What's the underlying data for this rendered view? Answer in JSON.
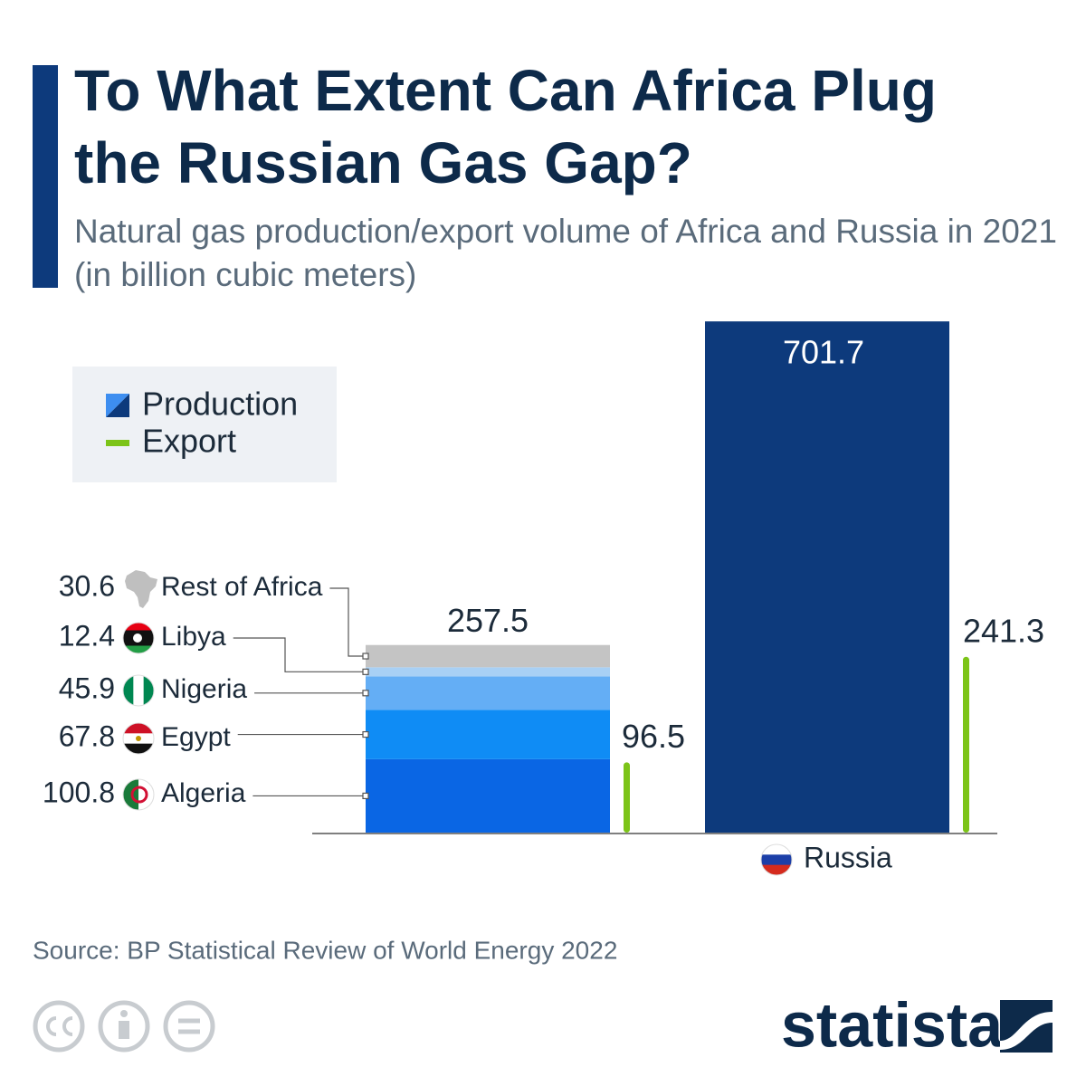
{
  "chart_data": {
    "type": "bar",
    "title": "To What Extent Can Africa Plug the Russian Gas Gap?",
    "subtitle": "Natural gas production/export volume of Africa and Russia in 2021 (in billion cubic meters)",
    "categories": [
      null,
      "Russia"
    ],
    "series": [
      {
        "name": "Production",
        "color": "#0d3a7c",
        "values": [
          257.5,
          701.7
        ]
      },
      {
        "name": "Export",
        "color": "#7cc418",
        "values": [
          96.5,
          241.3
        ]
      }
    ],
    "africa_breakdown": [
      {
        "name": "Algeria",
        "value": 100.8,
        "color": "#0a66e4"
      },
      {
        "name": "Egypt",
        "value": 67.8,
        "color": "#0f8cf5"
      },
      {
        "name": "Nigeria",
        "value": 45.9,
        "color": "#64aef5"
      },
      {
        "name": "Libya",
        "value": 12.4,
        "color": "#a8d0f5"
      },
      {
        "name": "Rest of Africa",
        "value": 30.6,
        "color": "#c4c4c4"
      }
    ],
    "source": "Source: BP Statistical Review of World Energy 2022",
    "brand": "statista"
  }
}
